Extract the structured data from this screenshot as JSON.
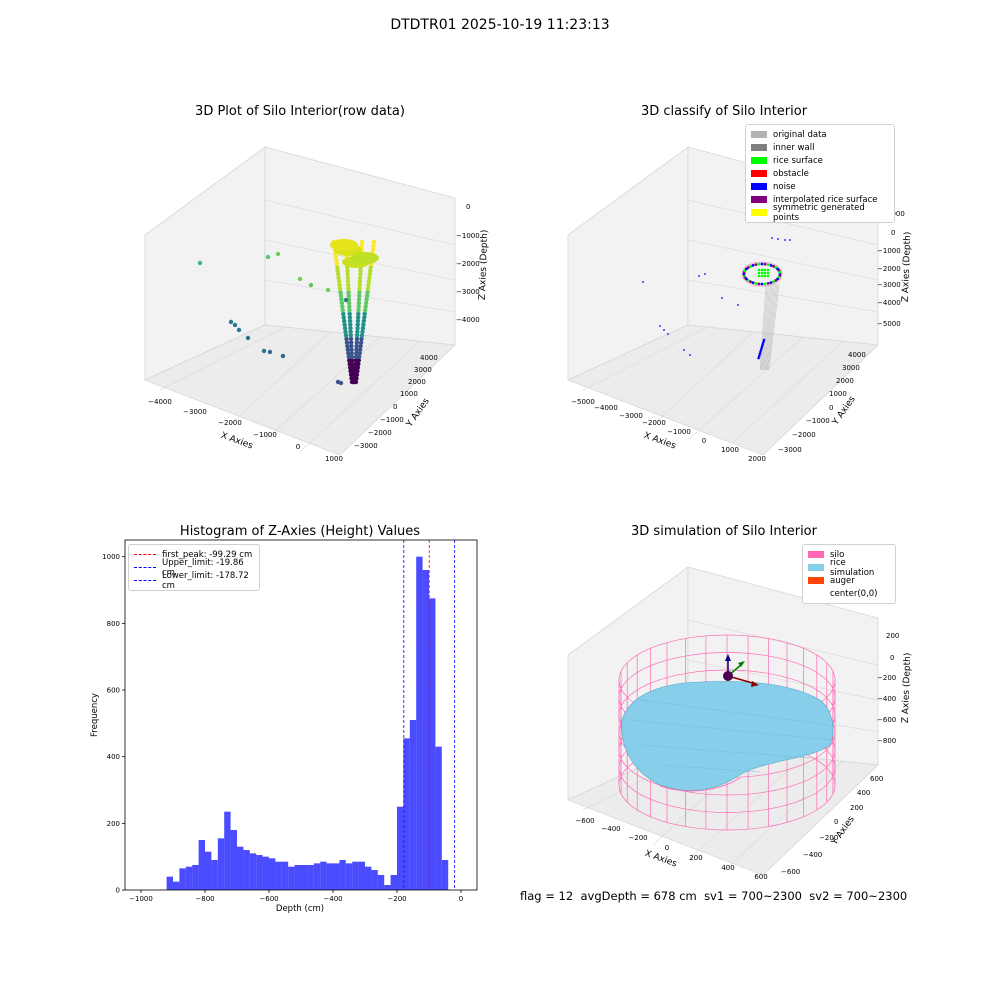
{
  "suptitle": "DTDTR01 2025-10-19 11:23:13",
  "panels": {
    "raw": {
      "title": "3D Plot of Silo Interior(row data)",
      "xlabel": "X Axies",
      "ylabel": "Y Axies",
      "zlabel": "Z Axies (Depth)",
      "xticks": [
        "−4000",
        "−3000",
        "−2000",
        "−1000",
        "0",
        "1000"
      ],
      "yticks": [
        "−3000",
        "−2000",
        "−1000",
        "0",
        "1000",
        "2000",
        "3000",
        "4000"
      ],
      "zticks": [
        "−4000",
        "−3000",
        "−2000",
        "−1000",
        "0"
      ]
    },
    "classify": {
      "title": "3D classify of Silo Interior",
      "xlabel": "X Axies",
      "ylabel": "Y Axies",
      "zlabel": "Z Axies (Depth)",
      "xticks": [
        "−5000",
        "−4000",
        "−3000",
        "−2000",
        "−1000",
        "0",
        "1000",
        "2000"
      ],
      "yticks": [
        "−3000",
        "−2000",
        "−1000",
        "0",
        "1000",
        "2000",
        "3000",
        "4000"
      ],
      "zticks": [
        "−5000",
        "−4000",
        "−3000",
        "−2000",
        "−1000",
        "0",
        "1000"
      ],
      "legend": [
        {
          "label": "original data",
          "color": "#b3b3b3"
        },
        {
          "label": "inner wall",
          "color": "#808080"
        },
        {
          "label": "rice surface",
          "color": "#00ff00"
        },
        {
          "label": "obstacle",
          "color": "#ff0000"
        },
        {
          "label": "noise",
          "color": "#0000ff"
        },
        {
          "label": "interpolated rice surface",
          "color": "#800080"
        },
        {
          "label": "symmetric generated points",
          "color": "#ffff00"
        }
      ]
    },
    "simulation": {
      "title": "3D simulation of Silo Interior",
      "xlabel": "X Axies",
      "ylabel": "Y Axies",
      "zlabel": "Z Axies (Depth)",
      "xticks": [
        "−600",
        "−400",
        "−200",
        "0",
        "200",
        "400",
        "600"
      ],
      "yticks": [
        "−600",
        "−400",
        "−200",
        "0",
        "200",
        "400",
        "600"
      ],
      "zticks": [
        "−800",
        "−600",
        "−400",
        "−200",
        "0",
        "200"
      ],
      "legend": [
        {
          "label": "silo",
          "color": "#ff69b4"
        },
        {
          "label": "rice simulation",
          "color": "#87ceeb"
        },
        {
          "label": "auger",
          "color": "#ff4500"
        },
        {
          "label": "center(0,0)",
          "color": "#ffffff"
        }
      ]
    }
  },
  "chart_data": {
    "type": "bar",
    "title": "Histogram of Z-Axies (Height) Values",
    "xlabel": "Depth (cm)",
    "ylabel": "Frequency",
    "xlim": [
      -1050,
      50
    ],
    "ylim": [
      0,
      1050
    ],
    "xticks": [
      -1000,
      -800,
      -600,
      -400,
      -200,
      0
    ],
    "yticks": [
      0,
      200,
      400,
      600,
      800,
      1000
    ],
    "bin_start": -920,
    "bin_width": 20,
    "values": [
      40,
      25,
      65,
      70,
      75,
      150,
      115,
      90,
      155,
      235,
      180,
      130,
      120,
      110,
      105,
      100,
      95,
      85,
      85,
      70,
      75,
      75,
      75,
      80,
      85,
      80,
      80,
      90,
      80,
      85,
      85,
      70,
      60,
      45,
      15,
      45,
      250,
      455,
      510,
      1000,
      960,
      875,
      430,
      90
    ],
    "bar_color": "#0000ff",
    "grid": false,
    "legend_position": "top-left",
    "vlines": [
      {
        "label": "first_peak: -99.29 cm",
        "x": -99.29,
        "color": "#ff0000"
      },
      {
        "label": "Upper_limit: -19.86 cm",
        "x": -19.86,
        "color": "#0000ff"
      },
      {
        "label": "Lower_limit: -178.72 cm",
        "x": -178.72,
        "color": "#0000ff"
      }
    ]
  },
  "status": {
    "flag": "flag = 12",
    "avg_depth": "avgDepth = 678 cm",
    "sv1": "sv1 = 700~2300",
    "sv2": "sv2 = 700~2300"
  }
}
